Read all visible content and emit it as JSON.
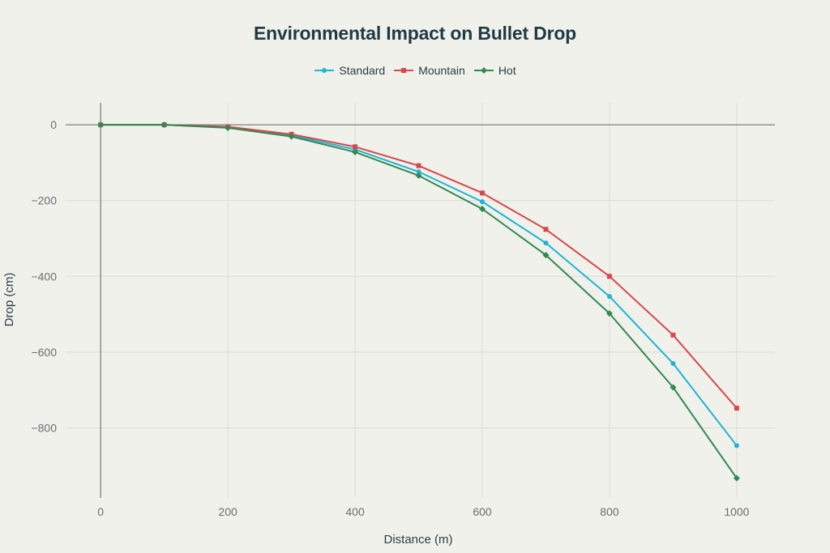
{
  "chart_data": {
    "type": "line",
    "title": "Environmental Impact on Bullet Drop",
    "xlabel": "Distance (m)",
    "ylabel": "Drop (cm)",
    "xlim": [
      -55,
      1060
    ],
    "ylim": [
      -985,
      58
    ],
    "x_ticks": [
      0,
      200,
      400,
      600,
      800,
      1000
    ],
    "y_ticks": [
      0,
      -200,
      -400,
      -600,
      -800
    ],
    "x_tick_labels": [
      "0",
      "200",
      "400",
      "600",
      "800",
      "1000"
    ],
    "y_tick_labels": [
      "0",
      "−200",
      "−400",
      "−600",
      "−800"
    ],
    "grid": true,
    "legend_position": "top-center",
    "x": [
      0,
      100,
      200,
      300,
      400,
      500,
      600,
      700,
      800,
      900,
      1000
    ],
    "series": [
      {
        "name": "Standard",
        "color": "#1fb4d2",
        "marker": "circle",
        "values": [
          0,
          0,
          -7,
          -28,
          -65,
          -124,
          -203,
          -312,
          -453,
          -630,
          -847
        ]
      },
      {
        "name": "Mountain",
        "color": "#d8474b",
        "marker": "square",
        "values": [
          0,
          0,
          -5,
          -25,
          -58,
          -108,
          -180,
          -276,
          -400,
          -555,
          -748
        ]
      },
      {
        "name": "Hot",
        "color": "#2f8a52",
        "marker": "diamond",
        "values": [
          0,
          0,
          -8,
          -31,
          -72,
          -134,
          -222,
          -344,
          -498,
          -693,
          -933
        ]
      }
    ]
  }
}
